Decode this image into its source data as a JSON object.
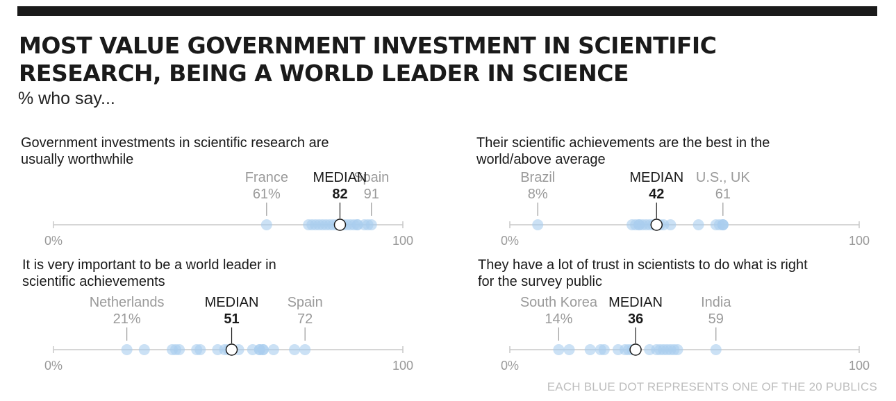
{
  "header": {
    "title_line1": "MOST VALUE GOVERNMENT INVESTMENT IN SCIENTIFIC",
    "title_line2": "RESEARCH, BEING A WORLD LEADER IN SCIENCE",
    "subtitle": "% who say..."
  },
  "footnote": "EACH BLUE DOT REPRESENTS ONE OF THE 20 PUBLICS",
  "colors": {
    "dot": "#a9cdef",
    "median_marker_fill": "#ffffff",
    "axis": "#c8c8c8",
    "annotation_gray": "#9a9a9a"
  },
  "chart_data": [
    {
      "type": "scatter",
      "question_line1": "Government investments in scientific research are",
      "question_line2": "usually worthwhile",
      "xlim": [
        0,
        100
      ],
      "x_tick_labels": [
        "0%",
        "100"
      ],
      "values": [
        61,
        73,
        74,
        75,
        76,
        77,
        78,
        79,
        80,
        81,
        82,
        83,
        84,
        85,
        86,
        87,
        87,
        89,
        90,
        91
      ],
      "median": {
        "label": "MEDIAN",
        "value": 82
      },
      "annotations": [
        {
          "name": "France",
          "value_label": "61%",
          "value": 61
        },
        {
          "name": "Spain",
          "value_label": "91",
          "value": 91
        }
      ]
    },
    {
      "type": "scatter",
      "question_line1": "Their scientific achievements are the best in the",
      "question_line2": "world/above average",
      "xlim": [
        0,
        100
      ],
      "x_tick_labels": [
        "0%",
        "100"
      ],
      "values": [
        8,
        35,
        36,
        37,
        37,
        38,
        39,
        40,
        41,
        42,
        42,
        43,
        44,
        46,
        54,
        59,
        60,
        61,
        61,
        61
      ],
      "median": {
        "label": "MEDIAN",
        "value": 42
      },
      "annotations": [
        {
          "name": "Brazil",
          "value_label": "8%",
          "value": 8
        },
        {
          "name": "U.S., UK",
          "value_label": "61",
          "value": 61
        }
      ]
    },
    {
      "type": "scatter",
      "question_line1": "It is very important to be a world leader in",
      "question_line2": "scientific achievements",
      "xlim": [
        0,
        100
      ],
      "x_tick_labels": [
        "0%",
        "100"
      ],
      "values": [
        21,
        26,
        34,
        35,
        36,
        41,
        42,
        47,
        49,
        50,
        51,
        53,
        57,
        59,
        59,
        60,
        60,
        63,
        69,
        72
      ],
      "median": {
        "label": "MEDIAN",
        "value": 51
      },
      "annotations": [
        {
          "name": "Netherlands",
          "value_label": "21%",
          "value": 21
        },
        {
          "name": "Spain",
          "value_label": "72",
          "value": 72
        }
      ]
    },
    {
      "type": "scatter",
      "question_line1": "They have a lot of trust in scientists to do what is right",
      "question_line2": "for the survey public",
      "xlim": [
        0,
        100
      ],
      "x_tick_labels": [
        "0%",
        "100"
      ],
      "values": [
        14,
        17,
        23,
        26,
        27,
        31,
        33,
        34,
        35,
        36,
        36,
        40,
        42,
        43,
        44,
        45,
        46,
        47,
        48,
        59
      ],
      "median": {
        "label": "MEDIAN",
        "value": 36
      },
      "annotations": [
        {
          "name": "South Korea",
          "value_label": "14%",
          "value": 14
        },
        {
          "name": "India",
          "value_label": "59",
          "value": 59
        }
      ]
    }
  ]
}
